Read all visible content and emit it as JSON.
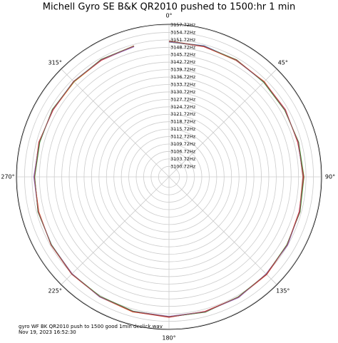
{
  "chart_data": {
    "type": "polar",
    "title": "Michell Gyro SE B&K QR2010 pushed to 1500:hr 1 min",
    "footer": [
      "gyro WF BK QR2010 push to 1500 good 1min declick.wav",
      "Nov 19, 2023 16:52:30"
    ],
    "x": [
      0,
      15,
      30,
      45,
      60,
      75,
      90,
      105,
      120,
      135,
      150,
      165,
      180,
      195,
      210,
      225,
      240,
      255,
      270,
      285,
      300,
      315,
      330,
      345
    ],
    "xticks": [
      {
        "value": 0,
        "label": "0°"
      },
      {
        "value": 45,
        "label": "45°"
      },
      {
        "value": 90,
        "label": "90°"
      },
      {
        "value": 135,
        "label": "135°"
      },
      {
        "value": 180,
        "label": "180°"
      },
      {
        "value": 225,
        "label": "225°"
      },
      {
        "value": 270,
        "label": "270°"
      },
      {
        "value": 315,
        "label": "315°"
      }
    ],
    "ylim": [
      3096.5,
      3158
    ],
    "yticks": [
      {
        "value": 3100.72,
        "label": "3100.72Hz"
      },
      {
        "value": 3103.72,
        "label": "3103.72Hz"
      },
      {
        "value": 3106.72,
        "label": "3106.72Hz"
      },
      {
        "value": 3109.72,
        "label": "3109.72Hz"
      },
      {
        "value": 3112.72,
        "label": "3112.72Hz"
      },
      {
        "value": 3115.72,
        "label": "3115.72Hz"
      },
      {
        "value": 3118.72,
        "label": "3118.72Hz"
      },
      {
        "value": 3121.72,
        "label": "3121.72Hz"
      },
      {
        "value": 3124.72,
        "label": "3124.72Hz"
      },
      {
        "value": 3127.72,
        "label": "3127.72Hz"
      },
      {
        "value": 3130.72,
        "label": "3130.72Hz"
      },
      {
        "value": 3133.72,
        "label": "3133.72Hz"
      },
      {
        "value": 3136.72,
        "label": "3136.72Hz"
      },
      {
        "value": 3139.72,
        "label": "3139.72Hz"
      },
      {
        "value": 3142.72,
        "label": "3142.72Hz"
      },
      {
        "value": 3145.72,
        "label": "3145.72Hz"
      },
      {
        "value": 3148.72,
        "label": "3148.72Hz"
      },
      {
        "value": 3151.72,
        "label": "3151.72Hz"
      },
      {
        "value": 3154.72,
        "label": "3154.72Hz"
      },
      {
        "value": 3157.72,
        "label": "3157.72Hz"
      }
    ],
    "grid": true,
    "series": [
      {
        "color": "#1f77b4",
        "values": [
          3151,
          3151.2,
          3150.8,
          3150.5,
          3150.6,
          3150.3,
          3150.7,
          3151.1,
          3151.4,
          3152.1,
          3152.4,
          3152.9,
          3153,
          3152.6,
          3152.2,
          3151.9,
          3151.2,
          3151.1,
          3150.7,
          3150.5,
          3150.7,
          3150.9,
          3151.1,
          3150.9
        ]
      },
      {
        "color": "#ff7f0e",
        "values": [
          3151.3,
          3150.9,
          3150.6,
          3150.8,
          3150.4,
          3150.5,
          3150.4,
          3150.9,
          3151.6,
          3151.9,
          3152.6,
          3152.7,
          3152.8,
          3152.9,
          3152.4,
          3151.7,
          3151.4,
          3150.8,
          3150.9,
          3150.7,
          3150.5,
          3150.6,
          3150.9,
          3151.2
        ]
      },
      {
        "color": "#2ca02c",
        "values": [
          3150.8,
          3151,
          3151,
          3150.4,
          3150.3,
          3150.6,
          3150.9,
          3151.2,
          3151.3,
          3152,
          3152.3,
          3153,
          3152.9,
          3152.5,
          3152.1,
          3151.8,
          3151.2,
          3151.2,
          3150.6,
          3150.4,
          3150.8,
          3150.7,
          3151.2,
          3151.1
        ]
      },
      {
        "color": "#d62728",
        "values": [
          3151.1,
          3150.8,
          3150.9,
          3150.7,
          3150.7,
          3150.2,
          3150.8,
          3150.8,
          3151.5,
          3152.2,
          3152.5,
          3152.6,
          3153.1,
          3152.8,
          3152.3,
          3152,
          3151.4,
          3150.9,
          3150.8,
          3150.8,
          3150.4,
          3150.9,
          3150.8,
          3151
        ]
      },
      {
        "color": "#9467bd",
        "values": [
          3150.9,
          3151.1,
          3150.7,
          3150.6,
          3150.5,
          3150.4,
          3150.5,
          3151,
          3151.7,
          3151.8,
          3152.7,
          3152.8,
          3152.7,
          3152.6,
          3152.4,
          3151.7,
          3151.3,
          3151,
          3151,
          3150.6,
          3150.6,
          3150.8,
          3151,
          3150.8
        ]
      },
      {
        "color": "#8c564b",
        "values": [
          3151.2,
          3151,
          3150.8,
          3150.6,
          3150.4,
          3150.5,
          3150.6,
          3151.1,
          3151.4,
          3152,
          3152.4,
          3152.9,
          3152.9,
          3152.7,
          3152.2,
          3151.9,
          3151.3,
          3151.1,
          3150.7,
          3150.6,
          3150.7,
          3150.8,
          3151.1,
          3151.1
        ]
      }
    ]
  }
}
